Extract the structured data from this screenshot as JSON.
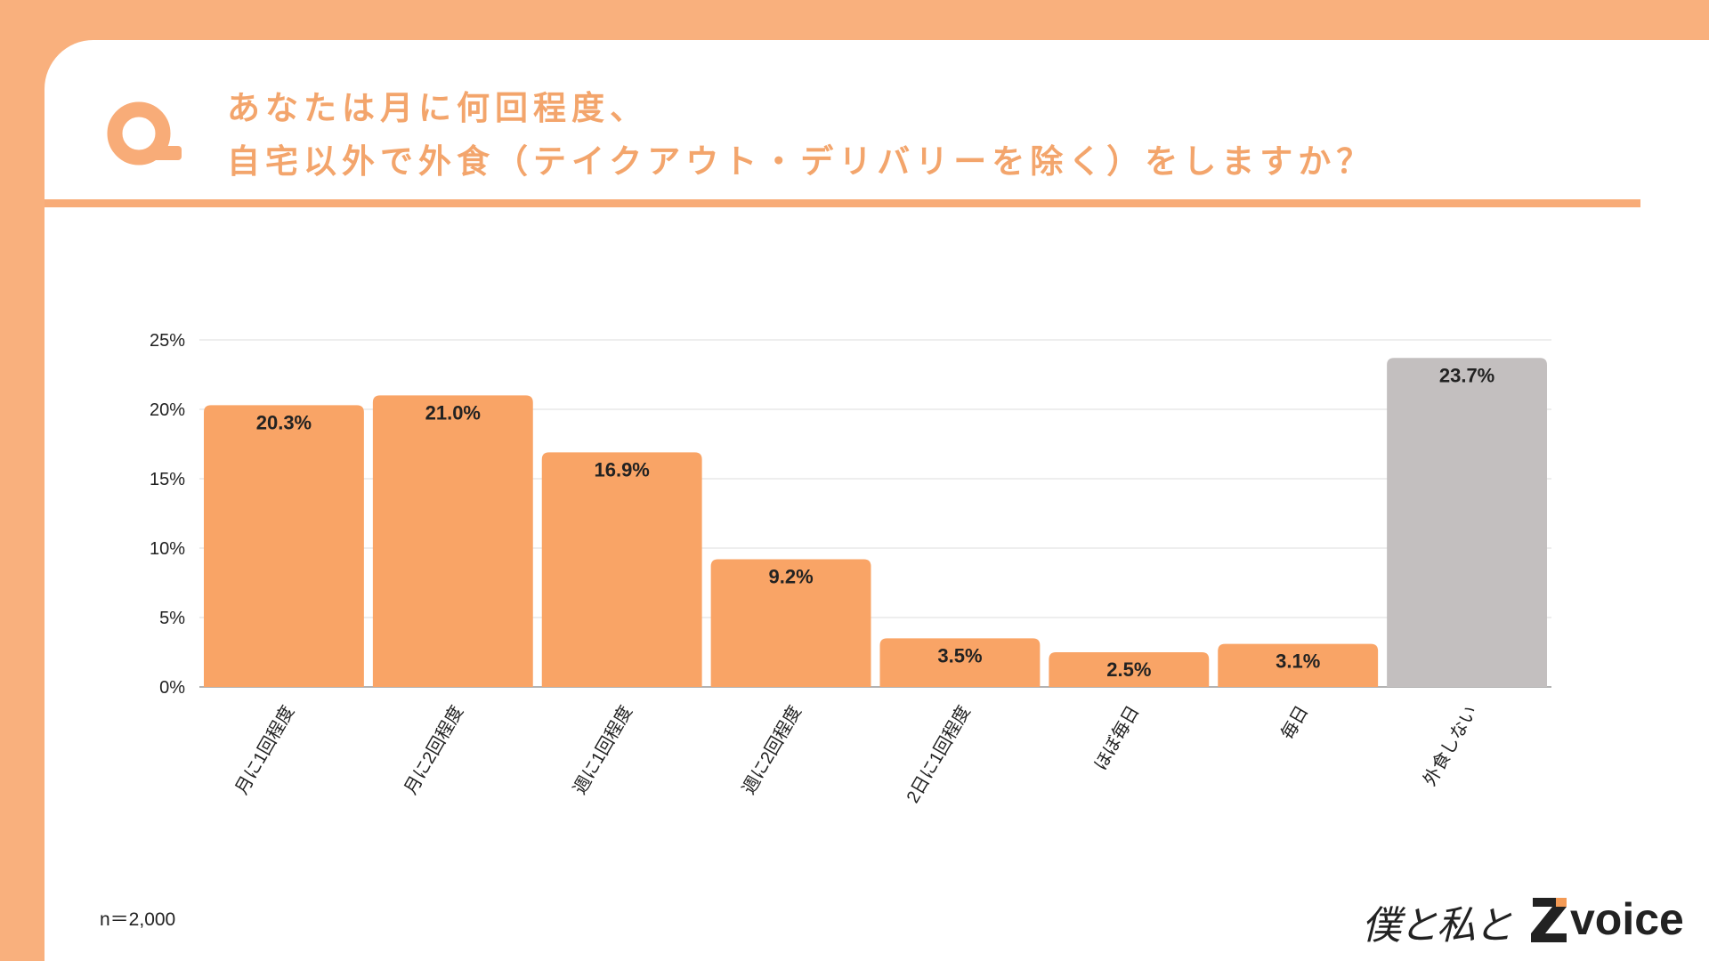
{
  "header": {
    "title_line1": "あなたは月に何回程度、",
    "title_line2": "自宅以外で外食（テイクアウト・デリバリーを除く）をしますか？",
    "icon": "q-icon"
  },
  "colors": {
    "background": "#F9B07D",
    "bar": "#F9A466",
    "bar_highlight": "#C3BFBF",
    "title": "#F3A56C",
    "rule": "#F8AC78"
  },
  "chart_data": {
    "type": "bar",
    "categories": [
      "月に1回程度",
      "月に2回程度",
      "週に1回程度",
      "週に2回程度",
      "2日に1回程度",
      "ほぼ毎日",
      "毎日",
      "外食しない"
    ],
    "values": [
      20.3,
      21.0,
      16.9,
      9.2,
      3.5,
      2.5,
      3.1,
      23.7
    ],
    "value_labels": [
      "20.3%",
      "21.0%",
      "16.9%",
      "9.2%",
      "3.5%",
      "2.5%",
      "3.1%",
      "23.7%"
    ],
    "highlight_index": 7,
    "ylim": [
      0,
      25
    ],
    "yticks": [
      0,
      5,
      10,
      15,
      20,
      25
    ],
    "ytick_labels": [
      "0%",
      "5%",
      "10%",
      "15%",
      "20%",
      "25%"
    ],
    "grid": true,
    "title": "",
    "xlabel": "",
    "ylabel": ""
  },
  "footer": {
    "sample_note": "n＝2,000",
    "logo_script": "僕と私と",
    "logo_brand": "voice"
  }
}
